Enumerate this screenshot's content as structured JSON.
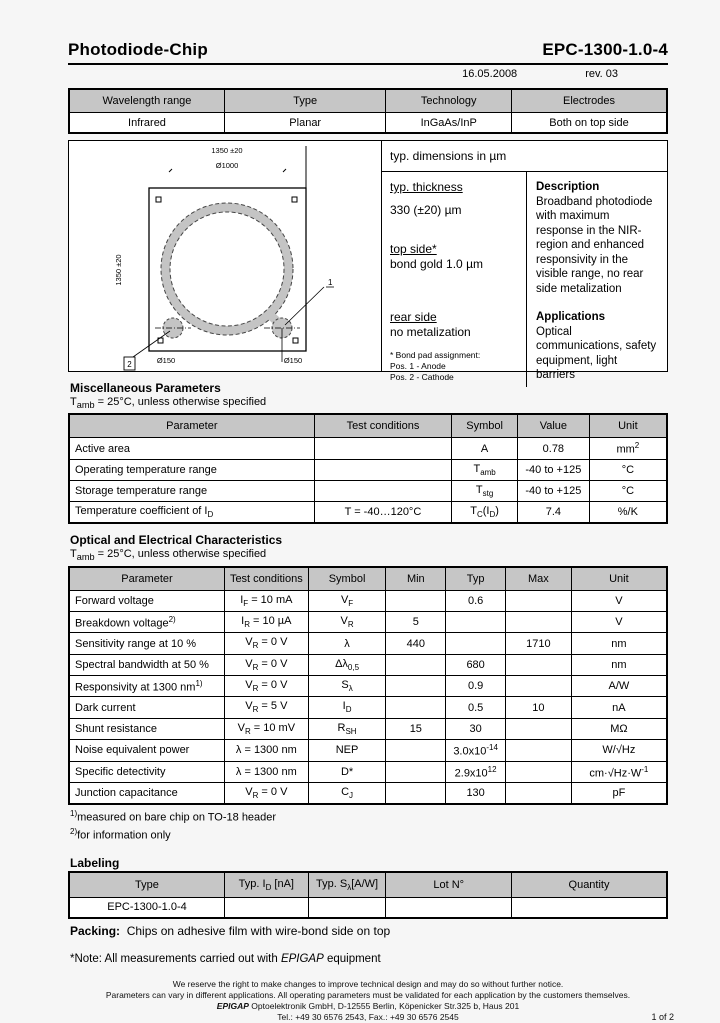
{
  "page": {
    "title": "Photodiode-Chip",
    "part_number": "EPC-1300-1.0-4",
    "date": "16.05.2008",
    "revision": "rev. 03",
    "page_number": "1 of 2"
  },
  "overview_table": {
    "headers": [
      "Wavelength range",
      "Type",
      "Technology",
      "Electrodes"
    ],
    "rows": [
      [
        "Infrared",
        "Planar",
        "InGaAs/InP",
        "Both on top side"
      ]
    ]
  },
  "diagram": {
    "dim_top": "1350 ±20",
    "dim_circle": "Ø1000",
    "dim_side": "1350 ±20",
    "dim_pad_left": "Ø150",
    "dim_pad_right": "Ø150",
    "marker_1": "1",
    "marker_2": "2"
  },
  "info_panel": {
    "dims_note": "typ. dimensions in µm",
    "thickness_label": "typ. thickness",
    "thickness_value": "330 (±20) µm",
    "top_side_label": "top side*",
    "top_side_value": "bond gold 1.0 µm",
    "rear_side_label": "rear side",
    "rear_side_value": "no metalization",
    "bond_pad_note": "* Bond pad assignment:",
    "bond_pad_pos1": "Pos. 1 - Anode",
    "bond_pad_pos2": "Pos. 2 - Cathode",
    "description_title": "Description",
    "description_text": "Broadband photodiode with maximum response in the NIR-region and enhanced responsivity in the visible range, no rear side metalization",
    "applications_title": "Applications",
    "applications_text": "Optical communications, safety equipment, light barriers"
  },
  "misc_section": {
    "title": "Miscellaneous Parameters",
    "condition": "T~amb~ = 25°C, unless otherwise specified",
    "headers": [
      "Parameter",
      "Test conditions",
      "Symbol",
      "Value",
      "Unit"
    ],
    "rows": [
      [
        "Active area",
        "",
        "A",
        "0.78",
        "mm^2^"
      ],
      [
        "Operating temperature range",
        "",
        "T~amb~",
        "-40 to +125",
        "°C"
      ],
      [
        "Storage temperature range",
        "",
        "T~stg~",
        "-40 to +125",
        "°C"
      ],
      [
        "Temperature coefficient of I~D~",
        "T = -40…120°C",
        "T~C~(I~D~)",
        "7.4",
        "%/K"
      ]
    ]
  },
  "oe_section": {
    "title": "Optical and Electrical Characteristics",
    "condition": "T~amb~ = 25°C, unless otherwise specified",
    "headers": [
      "Parameter",
      "Test conditions",
      "Symbol",
      "Min",
      "Typ",
      "Max",
      "Unit"
    ],
    "rows": [
      [
        "Forward voltage",
        "I~F~ = 10 mA",
        "V~F~",
        "",
        "0.6",
        "",
        "V"
      ],
      [
        "Breakdown voltage^2)^",
        "I~R~ = 10 µA",
        "V~R~",
        "5",
        "",
        "",
        "V"
      ],
      [
        "Sensitivity range at 10 %",
        "V~R~ = 0 V",
        "λ",
        "440",
        "",
        "1710",
        "nm"
      ],
      [
        "Spectral bandwidth at 50 %",
        "V~R~ = 0 V",
        "Δλ~0,5~",
        "",
        "680",
        "",
        "nm"
      ],
      [
        "Responsivity at 1300 nm^1)^",
        "V~R~ = 0 V",
        "S~λ~",
        "",
        "0.9",
        "",
        "A/W"
      ],
      [
        "Dark current",
        "V~R~ = 5 V",
        "I~D~",
        "",
        "0.5",
        "10",
        "nA"
      ],
      [
        "Shunt resistance",
        "V~R~ = 10 mV",
        "R~SH~",
        "15",
        "30",
        "",
        "MΩ"
      ],
      [
        "Noise equivalent power",
        "λ = 1300 nm",
        "NEP",
        "",
        "3.0x10^-14^",
        "",
        "W/√Hz"
      ],
      [
        "Specific detectivity",
        "λ = 1300 nm",
        "D*",
        "",
        "2.9x10^12^",
        "",
        "cm·√Hz·W^-1^"
      ],
      [
        "Junction capacitance",
        "V~R~ = 0 V",
        "C~J~",
        "",
        "130",
        "",
        "pF"
      ]
    ],
    "footnote1": "^1)^measured on bare chip on TO-18 header",
    "footnote2": "^2)^for information only"
  },
  "labeling_section": {
    "title": "Labeling",
    "headers": [
      "Type",
      "Typ. I~D~ [nA]",
      "Typ. S~λ~[A/W]",
      "Lot N°",
      "Quantity"
    ],
    "rows": [
      [
        "EPC-1300-1.0-4",
        "",
        "",
        "",
        ""
      ]
    ]
  },
  "packing": {
    "label": "Packing:",
    "text": "Chips on adhesive film with wire-bond side on top"
  },
  "note": {
    "prefix": "*Note: All measurements carried out with ",
    "brand": "EPIGAP",
    "suffix": " equipment"
  },
  "footer": {
    "line1": "We reserve the right to make changes to improve technical design and may do so without further notice.",
    "line2": "Parameters can vary in different applications. All operating parameters must be validated for each application by the customers themselves.",
    "line3_brand": "EPIGAP",
    "line3_rest": " Optoelektronik GmbH, D-12555 Berlin, Köpenicker Str.325 b, Haus 201",
    "line4": "Tel.: +49 30 6576 2543, Fax.: +49 30 6576 2545"
  },
  "colors": {
    "header_bg": "#c6c6c6",
    "ring_gray": "#c4c4c4",
    "page_bg": "#f6f6f6",
    "border": "#000000"
  }
}
